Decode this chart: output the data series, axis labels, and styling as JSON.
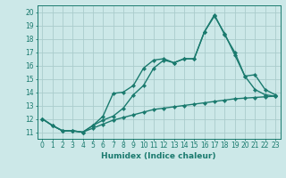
{
  "line1_x": [
    0,
    1,
    2,
    3,
    4,
    5,
    6,
    7,
    8,
    9,
    10,
    11,
    12,
    13,
    14,
    15,
    16,
    17,
    18,
    19,
    20,
    21,
    22,
    23
  ],
  "line1_y": [
    12.0,
    11.5,
    11.1,
    11.1,
    11.0,
    11.3,
    11.6,
    11.9,
    12.1,
    12.3,
    12.5,
    12.7,
    12.8,
    12.9,
    13.0,
    13.1,
    13.2,
    13.3,
    13.4,
    13.5,
    13.55,
    13.6,
    13.65,
    13.7
  ],
  "line2_x": [
    0,
    1,
    2,
    3,
    4,
    5,
    6,
    7,
    8,
    9,
    10,
    11,
    12,
    13,
    14,
    15,
    16,
    17,
    18,
    19,
    20,
    21,
    22,
    23
  ],
  "line2_y": [
    12.0,
    11.5,
    11.1,
    11.1,
    11.0,
    11.5,
    12.2,
    13.9,
    14.0,
    14.5,
    15.8,
    16.4,
    16.5,
    16.2,
    16.5,
    16.5,
    18.5,
    19.7,
    18.4,
    16.8,
    15.2,
    15.3,
    14.2,
    13.8
  ],
  "line3_x": [
    0,
    1,
    2,
    3,
    4,
    5,
    6,
    7,
    8,
    9,
    10,
    11,
    12,
    13,
    14,
    15,
    16,
    17,
    18,
    19,
    20,
    21,
    22,
    23
  ],
  "line3_y": [
    12.0,
    11.5,
    11.1,
    11.1,
    11.0,
    11.5,
    11.9,
    12.2,
    12.8,
    13.8,
    14.5,
    15.8,
    16.4,
    16.2,
    16.5,
    16.5,
    18.5,
    19.8,
    18.3,
    17.0,
    15.2,
    14.2,
    13.8,
    13.7
  ],
  "line_color": "#1a7a6e",
  "linewidth": 1.0,
  "marker": "D",
  "markersize": 2.2,
  "bg_color": "#cce8e8",
  "grid_color": "#aacccc",
  "xlabel": "Humidex (Indice chaleur)",
  "xlim": [
    -0.5,
    23.5
  ],
  "ylim": [
    10.5,
    20.5
  ],
  "xticks": [
    0,
    1,
    2,
    3,
    4,
    5,
    6,
    7,
    8,
    9,
    10,
    11,
    12,
    13,
    14,
    15,
    16,
    17,
    18,
    19,
    20,
    21,
    22,
    23
  ],
  "yticks": [
    11,
    12,
    13,
    14,
    15,
    16,
    17,
    18,
    19,
    20
  ],
  "axis_color": "#1a7a6e",
  "label_fontsize": 6.5,
  "tick_fontsize": 5.5
}
